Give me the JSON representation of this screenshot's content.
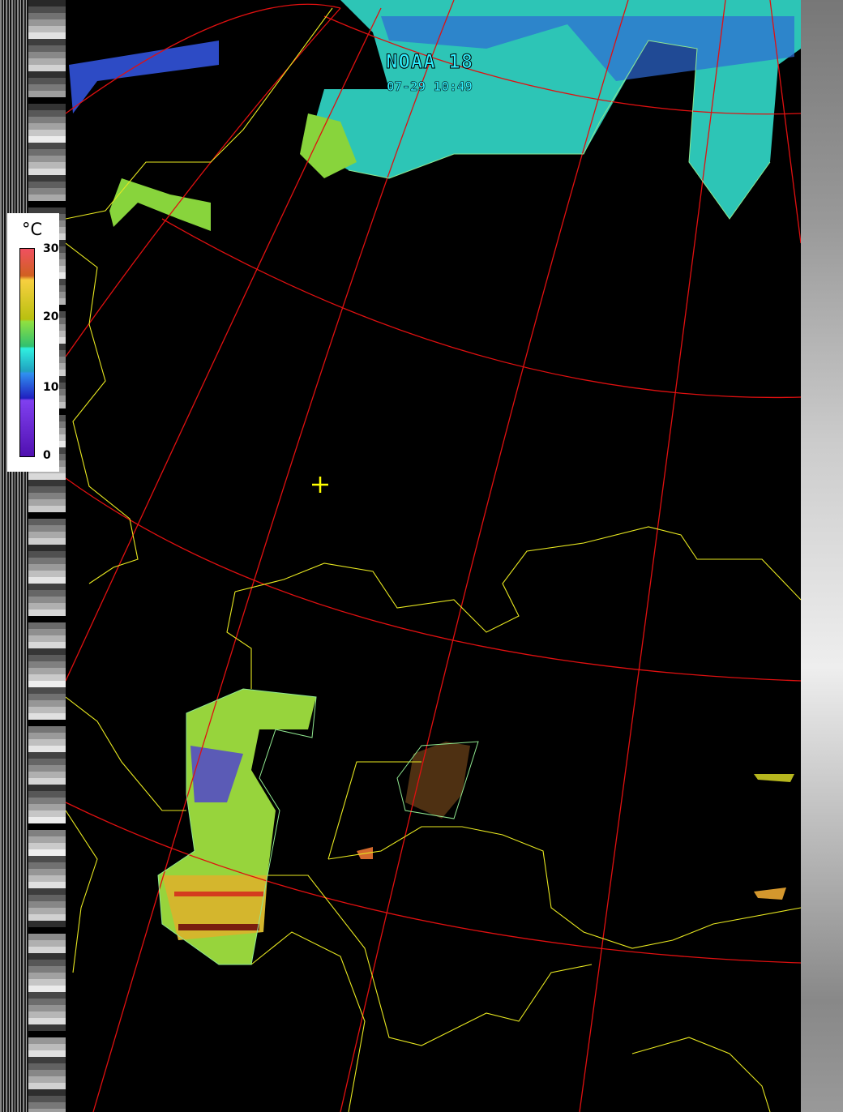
{
  "satellite": {
    "name": "NOAA 18",
    "timestamp": "07-29 10:49"
  },
  "legend": {
    "unit": "°C",
    "ticks": [
      "30",
      "20",
      "10",
      "0"
    ],
    "range": [
      0,
      30
    ]
  },
  "colors": {
    "graticule": "#e01010",
    "borders": "#e8e820",
    "coastline": "#90e890",
    "label": "#2ff0ff",
    "marker": "#ffff00"
  },
  "marker": {
    "icon": "crosshair-icon"
  }
}
